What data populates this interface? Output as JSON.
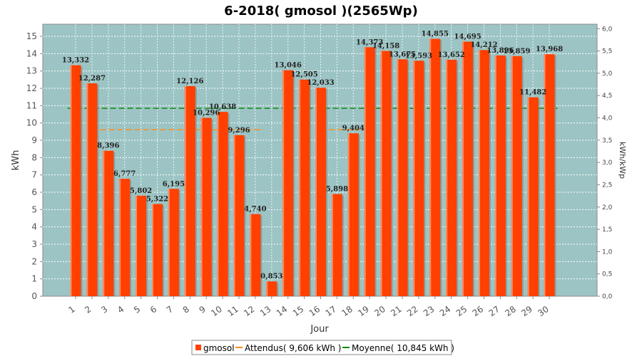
{
  "chart_data": {
    "type": "bar",
    "title": "6-2018( gmosol )(2565Wp)",
    "xlabel": "Jour",
    "ylabel": "kWh",
    "ylabel_right": "kWh/kWp",
    "ylim": [
      0,
      15.7
    ],
    "ylim_right": [
      0,
      6.1
    ],
    "y_ticks": [
      "0",
      "1",
      "2",
      "3",
      "4",
      "5",
      "6",
      "7",
      "8",
      "9",
      "10",
      "11",
      "12",
      "13",
      "14",
      "15"
    ],
    "y_right_ticks": [
      "0,0",
      "0,5",
      "1,0",
      "1,5",
      "2,0",
      "2,5",
      "3,0",
      "3,5",
      "4,0",
      "4,5",
      "5,0",
      "5,5",
      "6,0"
    ],
    "categories": [
      "1",
      "2",
      "3",
      "4",
      "5",
      "6",
      "7",
      "8",
      "9",
      "10",
      "11",
      "12",
      "13",
      "14",
      "15",
      "16",
      "17",
      "18",
      "19",
      "20",
      "21",
      "22",
      "23",
      "24",
      "25",
      "26",
      "27",
      "28",
      "29",
      "30"
    ],
    "series": [
      {
        "name": "gmosol",
        "values": [
          13.332,
          12.287,
          8.396,
          6.777,
          5.802,
          5.322,
          6.195,
          12.126,
          10.296,
          10.638,
          9.296,
          4.74,
          0.853,
          13.046,
          12.505,
          12.033,
          5.898,
          9.404,
          14.373,
          14.158,
          13.675,
          13.593,
          14.855,
          13.652,
          14.695,
          14.212,
          13.896,
          13.859,
          11.482,
          13.968
        ],
        "labels": [
          "13,332",
          "12,287",
          "8,396",
          "6,777",
          "5,802",
          "5,322",
          "6,195",
          "12,126",
          "10,296",
          "10,638",
          "9,296",
          "4,740",
          "0,853",
          "13,046",
          "12,505",
          "12,033",
          "5,898",
          "9,404",
          "14,373",
          "14,158",
          "13,675",
          "13,593",
          "14,855",
          "13,652",
          "14,695",
          "14,212",
          "13,896",
          "13,859",
          "11,482",
          "13,968"
        ]
      }
    ],
    "reference_lines": [
      {
        "name": "Attendus",
        "legend": "Attendus( 9,606 kWh )",
        "segments": [
          {
            "from": 3,
            "to": 12,
            "value": 9.606
          },
          {
            "from": 17,
            "to": 18,
            "value": 9.606
          }
        ]
      },
      {
        "name": "Moyenne",
        "legend": "Moyenne( 10,845 kWh )",
        "segments": [
          {
            "from": 1,
            "to": 30,
            "value": 10.845
          }
        ]
      }
    ],
    "legend": [
      "gmosol",
      "Attendus( 9,606 kWh )",
      "Moyenne( 10,845 kWh )"
    ],
    "legend_position": "bottom",
    "grid": true,
    "colors": {
      "bar": "#ff4000",
      "bar_edge": "#ff8a5c",
      "bar_shadow": "#7a8a8a",
      "plot_bg": "#9dc4c4",
      "grid": "#ffffff",
      "attendus": "#ff8c1a",
      "moyenne": "#0f8a0f"
    }
  }
}
